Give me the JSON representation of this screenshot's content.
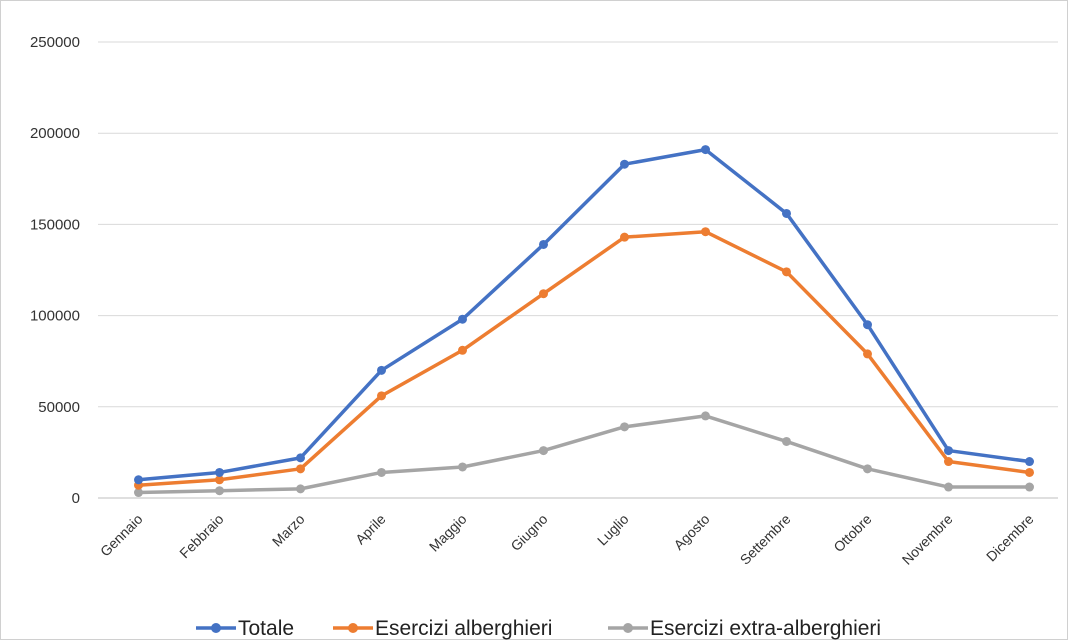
{
  "chart_data": {
    "type": "line",
    "title": "",
    "xlabel": "",
    "ylabel": "",
    "categories": [
      "Gennaio",
      "Febbraio",
      "Marzo",
      "Aprile",
      "Maggio",
      "Giugno",
      "Luglio",
      "Agosto",
      "Settembre",
      "Ottobre",
      "Novembre",
      "Dicembre"
    ],
    "ylim": [
      0,
      250000
    ],
    "yticks": [
      "0",
      "50000",
      "100000",
      "150000",
      "200000",
      "250000"
    ],
    "grid": true,
    "legend_position": "bottom",
    "series": [
      {
        "name": "Totale",
        "color": "#4472C4",
        "values": [
          10000,
          14000,
          22000,
          70000,
          98000,
          139000,
          183000,
          191000,
          156000,
          95000,
          26000,
          20000
        ]
      },
      {
        "name": "Esercizi alberghieri",
        "color": "#ED7D31",
        "values": [
          7000,
          10000,
          16000,
          56000,
          81000,
          112000,
          143000,
          146000,
          124000,
          79000,
          20000,
          14000
        ]
      },
      {
        "name": "Esercizi extra-alberghieri",
        "color": "#A5A5A5",
        "values": [
          3000,
          4000,
          5000,
          14000,
          17000,
          26000,
          39000,
          45000,
          31000,
          16000,
          6000,
          6000
        ]
      }
    ]
  }
}
